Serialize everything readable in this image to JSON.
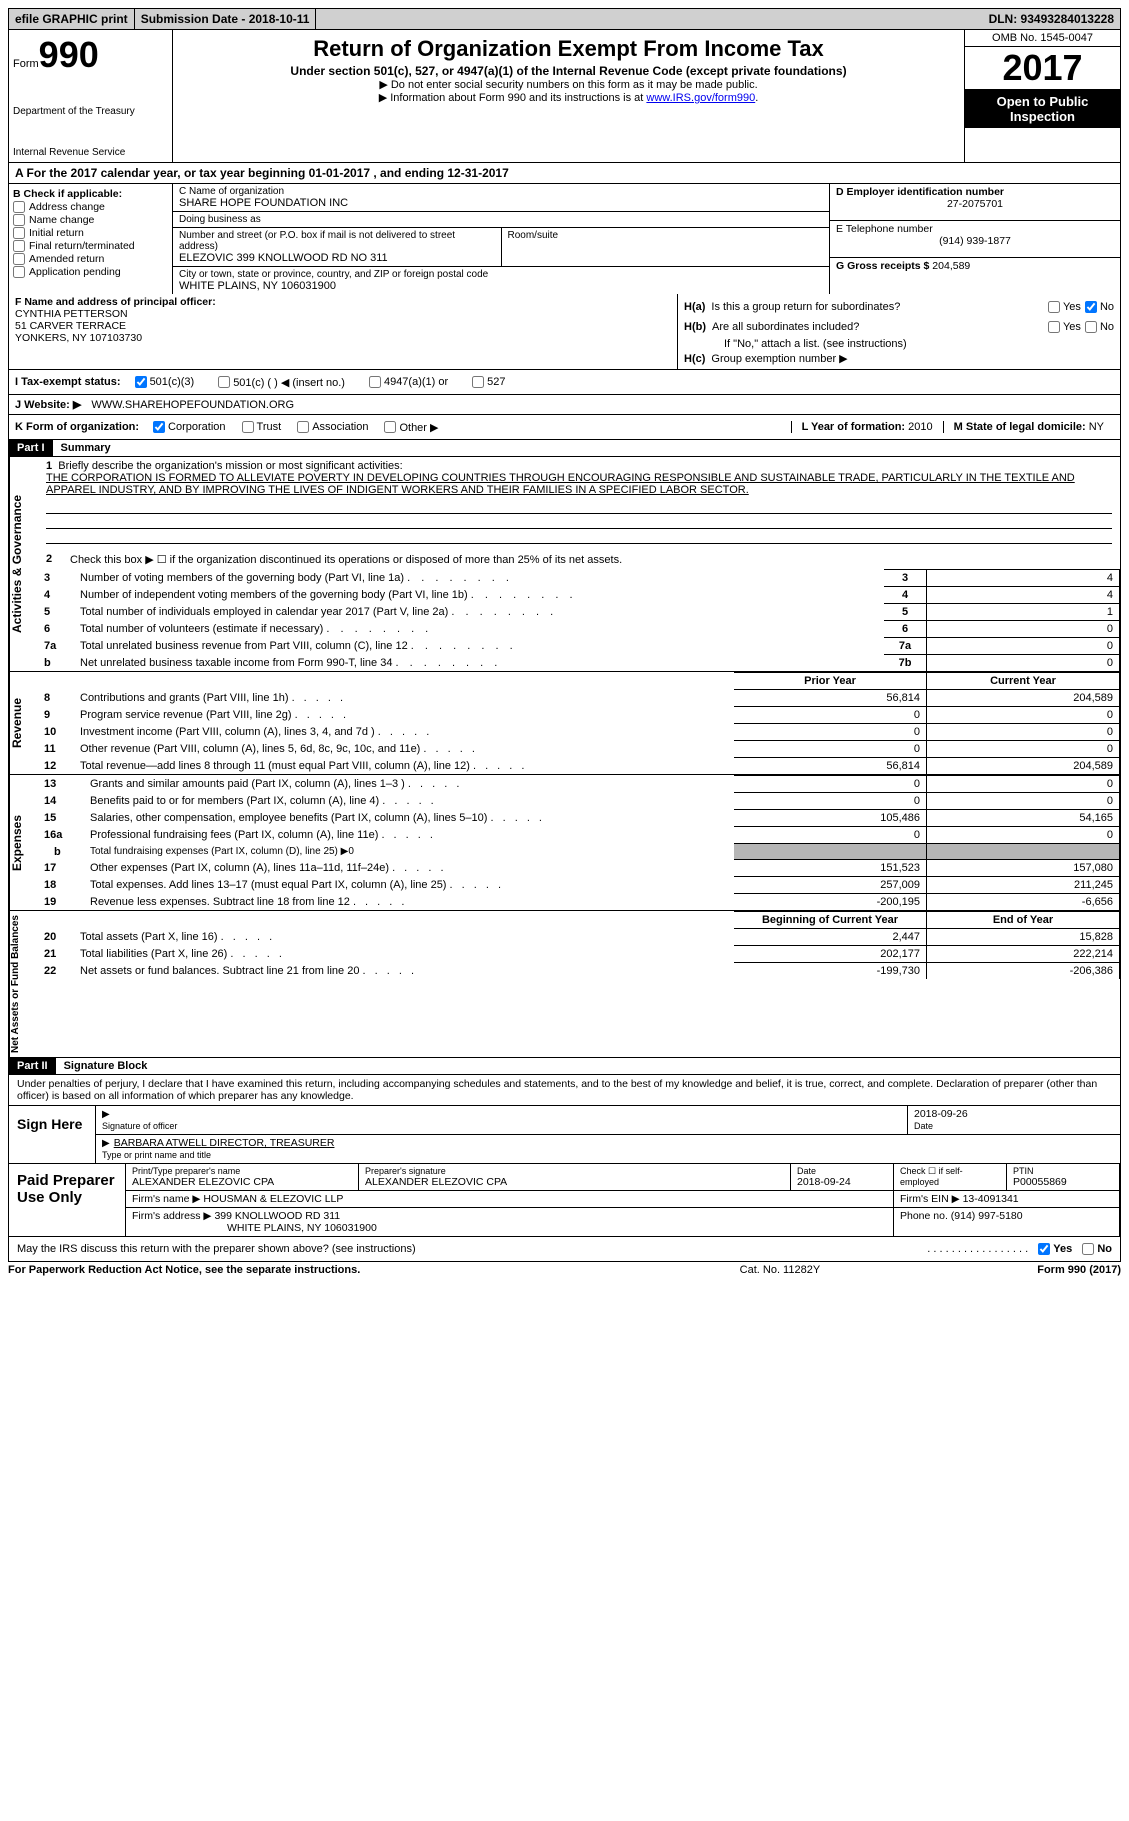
{
  "topbar": {
    "efile": "efile GRAPHIC print",
    "submission": "Submission Date - 2018-10-11",
    "dln": "DLN: 93493284013228"
  },
  "header": {
    "form_prefix": "Form",
    "form_number": "990",
    "dept1": "Department of the Treasury",
    "dept2": "Internal Revenue Service",
    "title": "Return of Organization Exempt From Income Tax",
    "subtitle": "Under section 501(c), 527, or 4947(a)(1) of the Internal Revenue Code (except private foundations)",
    "instr1": "▶ Do not enter social security numbers on this form as it may be made public.",
    "instr2": "▶ Information about Form 990 and its instructions is at ",
    "instr2_link": "www.IRS.gov/form990",
    "omb": "OMB No. 1545-0047",
    "year": "2017",
    "open1": "Open to Public",
    "open2": "Inspection"
  },
  "sectionA": "A   For the 2017 calendar year, or tax year beginning 01-01-2017   , and ending 12-31-2017",
  "sectionB": {
    "header": "B Check if applicable:",
    "items": [
      "Address change",
      "Name change",
      "Initial return",
      "Final return/terminated",
      "Amended return",
      "Application pending"
    ]
  },
  "sectionC": {
    "name_label": "C Name of organization",
    "name": "SHARE HOPE FOUNDATION INC",
    "dba_label": "Doing business as",
    "dba": "",
    "addr_label": "Number and street (or P.O. box if mail is not delivered to street address)",
    "addr": "ELEZOVIC 399 KNOLLWOOD RD NO 311",
    "room_label": "Room/suite",
    "city_label": "City or town, state or province, country, and ZIP or foreign postal code",
    "city": "WHITE PLAINS, NY   106031900"
  },
  "sectionD": {
    "ein_label": "D Employer identification number",
    "ein": "27-2075701",
    "phone_label": "E Telephone number",
    "phone": "(914) 939-1877",
    "gross_label": "G Gross receipts $ ",
    "gross": "204,589"
  },
  "sectionF": {
    "label": "F  Name and address of principal officer:",
    "name": "CYNTHIA PETTERSON",
    "addr1": "51 CARVER TERRACE",
    "addr2": "YONKERS, NY   107103730"
  },
  "sectionH": {
    "a_label": "H(a)",
    "a_q": "Is this a group return for subordinates?",
    "b_label": "H(b)",
    "b_q": "Are all subordinates included?",
    "b_note": "If \"No,\" attach a list. (see instructions)",
    "c_label": "H(c)",
    "c_q": "Group exemption number ▶"
  },
  "sectionI": {
    "label": "I   Tax-exempt status:",
    "opts": [
      "501(c)(3)",
      "501(c) (   ) ◀ (insert no.)",
      "4947(a)(1) or",
      "527"
    ]
  },
  "sectionJ": {
    "label": "J   Website: ▶",
    "value": "WWW.SHAREHOPEFOUNDATION.ORG"
  },
  "sectionK": {
    "label": "K Form of organization:",
    "opts": [
      "Corporation",
      "Trust",
      "Association",
      "Other ▶"
    ],
    "year_label": "L Year of formation: ",
    "year": "2010",
    "state_label": "M State of legal domicile: ",
    "state": "NY"
  },
  "part1": {
    "header": "Part I",
    "title": "Summary",
    "q1_num": "1",
    "q1": "Briefly describe the organization's mission or most significant activities:",
    "q1_text": "THE CORPORATION IS FORMED TO ALLEVIATE POVERTY IN DEVELOPING COUNTRIES THROUGH ENCOURAGING RESPONSIBLE AND SUSTAINABLE TRADE, PARTICULARLY IN THE TEXTILE AND APPAREL INDUSTRY, AND BY IMPROVING THE LIVES OF INDIGENT WORKERS AND THEIR FAMILIES IN A SPECIFIED LABOR SECTOR.",
    "q2_num": "2",
    "q2": "Check this box ▶ ☐  if the organization discontinued its operations or disposed of more than 25% of its net assets.",
    "vtab1": "Activities & Governance",
    "lines_gov": [
      {
        "n": "3",
        "desc": "Number of voting members of the governing body (Part VI, line 1a)",
        "box": "3",
        "val": "4"
      },
      {
        "n": "4",
        "desc": "Number of independent voting members of the governing body (Part VI, line 1b)",
        "box": "4",
        "val": "4"
      },
      {
        "n": "5",
        "desc": "Total number of individuals employed in calendar year 2017 (Part V, line 2a)",
        "box": "5",
        "val": "1"
      },
      {
        "n": "6",
        "desc": "Total number of volunteers (estimate if necessary)",
        "box": "6",
        "val": "0"
      },
      {
        "n": "7a",
        "desc": "Total unrelated business revenue from Part VIII, column (C), line 12",
        "box": "7a",
        "val": "0"
      },
      {
        "n": "b",
        "desc": "Net unrelated business taxable income from Form 990-T, line 34",
        "box": "7b",
        "val": "0",
        "sub": true
      }
    ],
    "vtab2": "Revenue",
    "col_prior": "Prior Year",
    "col_current": "Current Year",
    "lines_rev": [
      {
        "n": "8",
        "desc": "Contributions and grants (Part VIII, line 1h)",
        "prior": "56,814",
        "curr": "204,589"
      },
      {
        "n": "9",
        "desc": "Program service revenue (Part VIII, line 2g)",
        "prior": "0",
        "curr": "0"
      },
      {
        "n": "10",
        "desc": "Investment income (Part VIII, column (A), lines 3, 4, and 7d )",
        "prior": "0",
        "curr": "0"
      },
      {
        "n": "11",
        "desc": "Other revenue (Part VIII, column (A), lines 5, 6d, 8c, 9c, 10c, and 11e)",
        "prior": "0",
        "curr": "0"
      },
      {
        "n": "12",
        "desc": "Total revenue—add lines 8 through 11 (must equal Part VIII, column (A), line 12)",
        "prior": "56,814",
        "curr": "204,589"
      }
    ],
    "vtab3": "Expenses",
    "lines_exp": [
      {
        "n": "13",
        "desc": "Grants and similar amounts paid (Part IX, column (A), lines 1–3 )",
        "prior": "0",
        "curr": "0"
      },
      {
        "n": "14",
        "desc": "Benefits paid to or for members (Part IX, column (A), line 4)",
        "prior": "0",
        "curr": "0"
      },
      {
        "n": "15",
        "desc": "Salaries, other compensation, employee benefits (Part IX, column (A), lines 5–10)",
        "prior": "105,486",
        "curr": "54,165"
      },
      {
        "n": "16a",
        "desc": "Professional fundraising fees (Part IX, column (A), line 11e)",
        "prior": "0",
        "curr": "0"
      },
      {
        "n": "b",
        "desc": "Total fundraising expenses (Part IX, column (D), line 25) ▶0",
        "prior": "GREY",
        "curr": "GREY",
        "sub": true
      },
      {
        "n": "17",
        "desc": "Other expenses (Part IX, column (A), lines 11a–11d, 11f–24e)",
        "prior": "151,523",
        "curr": "157,080"
      },
      {
        "n": "18",
        "desc": "Total expenses. Add lines 13–17 (must equal Part IX, column (A), line 25)",
        "prior": "257,009",
        "curr": "211,245"
      },
      {
        "n": "19",
        "desc": "Revenue less expenses. Subtract line 18 from line 12",
        "prior": "-200,195",
        "curr": "-6,656"
      }
    ],
    "vtab4": "Net Assets or Fund Balances",
    "col_begin": "Beginning of Current Year",
    "col_end": "End of Year",
    "lines_net": [
      {
        "n": "20",
        "desc": "Total assets (Part X, line 16)",
        "prior": "2,447",
        "curr": "15,828"
      },
      {
        "n": "21",
        "desc": "Total liabilities (Part X, line 26)",
        "prior": "202,177",
        "curr": "222,214"
      },
      {
        "n": "22",
        "desc": "Net assets or fund balances. Subtract line 21 from line 20",
        "prior": "-199,730",
        "curr": "-206,386"
      }
    ]
  },
  "part2": {
    "header": "Part II",
    "title": "Signature Block",
    "declare": "Under penalties of perjury, I declare that I have examined this return, including accompanying schedules and statements, and to the best of my knowledge and belief, it is true, correct, and complete. Declaration of preparer (other than officer) is based on all information of which preparer has any knowledge.",
    "sign_here": "Sign Here",
    "sig_officer_label": "Signature of officer",
    "sig_date": "2018-09-26",
    "date_label": "Date",
    "officer_name": "BARBARA ATWELL DIRECTOR, TREASURER",
    "name_label": "Type or print name and title",
    "paid_label": "Paid Preparer Use Only",
    "prep_name_label": "Print/Type preparer's name",
    "prep_name": "ALEXANDER ELEZOVIC CPA",
    "prep_sig_label": "Preparer's signature",
    "prep_sig": "ALEXANDER ELEZOVIC CPA",
    "prep_date_label": "Date",
    "prep_date": "2018-09-24",
    "check_label": "Check ☐ if self-employed",
    "ptin_label": "PTIN",
    "ptin": "P00055869",
    "firm_name_label": "Firm's name    ▶",
    "firm_name": "HOUSMAN & ELEZOVIC LLP",
    "firm_ein_label": "Firm's EIN ▶",
    "firm_ein": "13-4091341",
    "firm_addr_label": "Firm's address ▶",
    "firm_addr1": "399 KNOLLWOOD RD 311",
    "firm_addr2": "WHITE PLAINS, NY   106031900",
    "firm_phone_label": "Phone no. ",
    "firm_phone": "(914) 997-5180",
    "irs_q": "May the IRS discuss this return with the preparer shown above? (see instructions)"
  },
  "footer": {
    "left": "For Paperwork Reduction Act Notice, see the separate instructions.",
    "mid": "Cat. No. 11282Y",
    "right": "Form 990 (2017)"
  },
  "yes": "Yes",
  "no": "No"
}
